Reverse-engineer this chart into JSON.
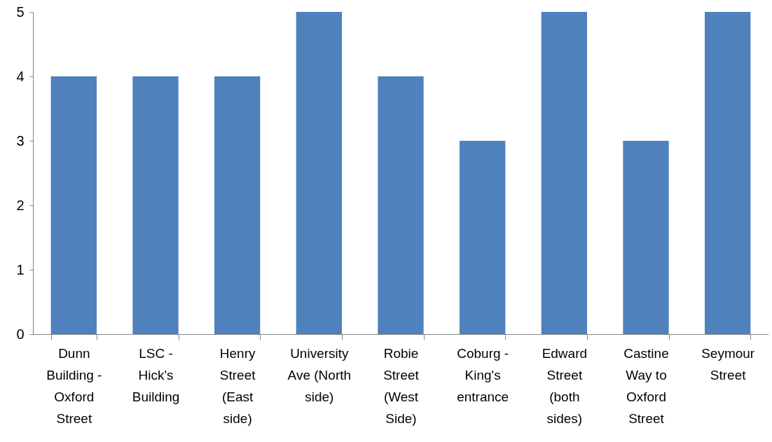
{
  "chart_data": {
    "type": "bar",
    "categories": [
      "Dunn Building - Oxford Street",
      "LSC - Hick's Building",
      "Henry Street (East side)",
      "University Ave (North side)",
      "Robie Street (West Side)",
      "Coburg - King's entrance",
      "Edward Street (both sides)",
      "Castine Way to Oxford Street",
      "Seymour Street"
    ],
    "values": [
      4,
      4,
      4,
      5,
      4,
      3,
      5,
      3,
      5
    ],
    "color": "#4f81bd",
    "ylim": [
      0,
      5
    ],
    "yticks": [
      0,
      1,
      2,
      3,
      4,
      5
    ],
    "grid": false
  }
}
